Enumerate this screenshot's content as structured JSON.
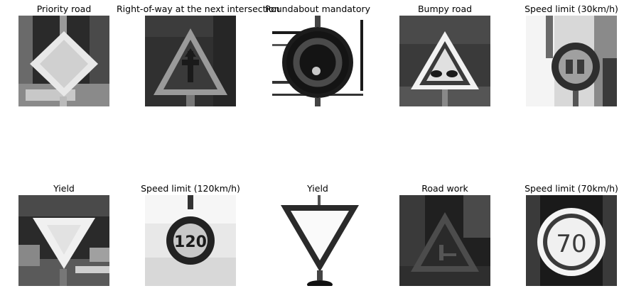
{
  "samples": [
    {
      "title": "Priority road",
      "icon": "priority-road-sign"
    },
    {
      "title": "Right-of-way at the next intersection",
      "icon": "right-of-way-sign"
    },
    {
      "title": "Roundabout mandatory",
      "icon": "roundabout-sign"
    },
    {
      "title": "Bumpy road",
      "icon": "bumpy-road-sign"
    },
    {
      "title": "Speed limit (30km/h)",
      "icon": "speed-limit-30-sign"
    },
    {
      "title": "Yield",
      "icon": "yield-sign"
    },
    {
      "title": "Speed limit (120km/h)",
      "icon": "speed-limit-120-sign"
    },
    {
      "title": "Yield",
      "icon": "yield-sign"
    },
    {
      "title": "Road work",
      "icon": "road-work-sign"
    },
    {
      "title": "Speed limit (70km/h)",
      "icon": "speed-limit-70-sign"
    }
  ]
}
